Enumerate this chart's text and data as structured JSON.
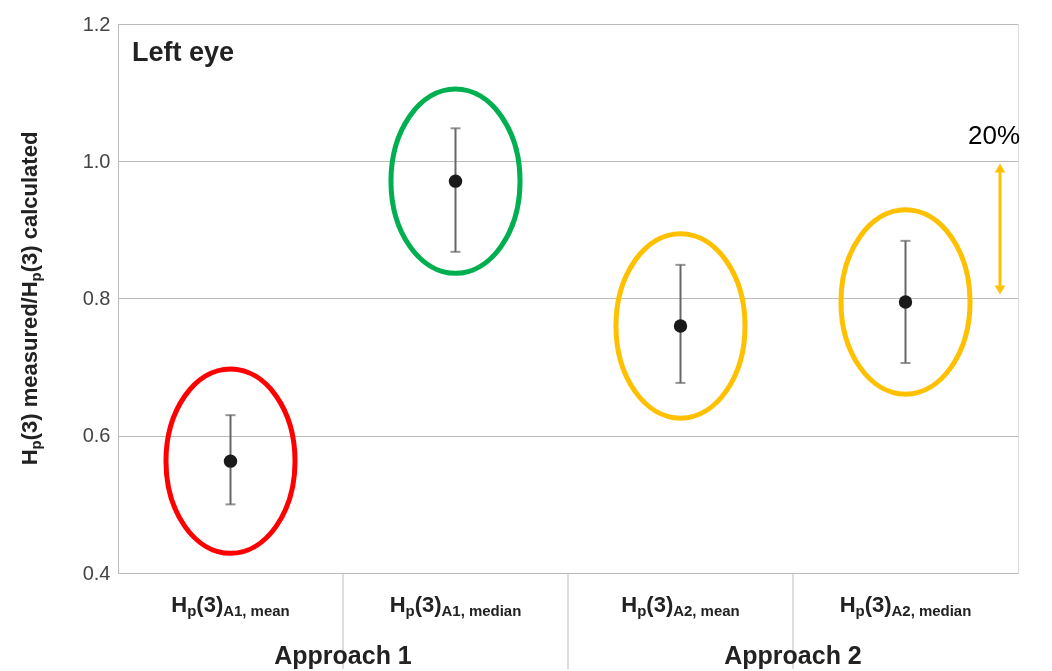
{
  "chart_data": {
    "type": "scatter",
    "title": "Left eye",
    "ylabel": "H$_{p}$(3) measured/H$_{p}$(3) calculated",
    "categories": [
      "H$_{p}$(3)$_{A1, mean}$",
      "H$_{p}$(3)$_{A1, median}$",
      "H$_{p}$(3)$_{A2, mean}$",
      "H$_{p}$(3)$_{A2, median}$"
    ],
    "series": [
      {
        "color": "#1a1a1a",
        "values": [
          0.563,
          0.971,
          0.76,
          0.795
        ],
        "errors": [
          [
            0.5,
            0.63
          ],
          [
            0.868,
            1.048
          ],
          [
            0.677,
            0.849
          ],
          [
            0.706,
            0.884
          ]
        ]
      }
    ],
    "ylim": [
      0.4,
      1.2
    ],
    "yticks": [
      0.4,
      0.6,
      0.8,
      {
        "value": 1.0,
        "label": "1.0"
      },
      1.2
    ],
    "annotations": [
      "Approach 1",
      "Approach 2",
      "20%"
    ],
    "marker": "circle",
    "grid": "y"
  }
}
